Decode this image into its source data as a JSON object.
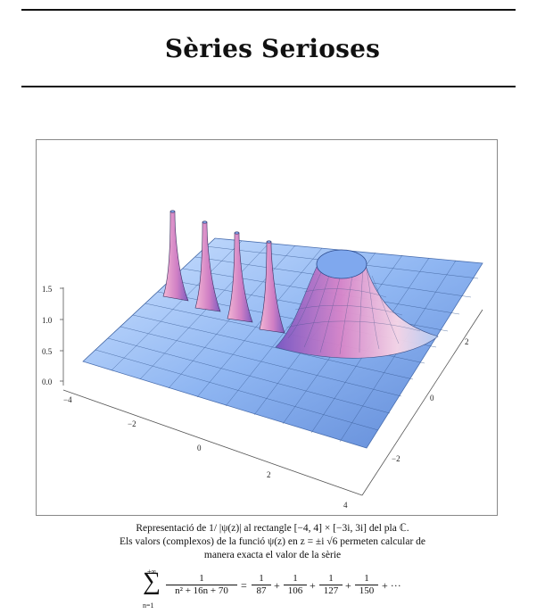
{
  "header": {
    "title": "Sèries Serioses"
  },
  "figure": {
    "axis_left_ticks": [
      "1.5",
      "1.0",
      "0.5",
      "0.0"
    ],
    "axis_front_ticks": [
      "−4",
      "−2",
      "0",
      "2",
      "4"
    ],
    "axis_right_ticks": [
      "2",
      "0",
      "−2"
    ],
    "surface_colors": {
      "light": "#cfe3ff",
      "mid": "#8fb6f2",
      "dark": "#5e88d6",
      "peak_pink": "#f3b6d4",
      "peak_purple": "#a35fb8",
      "cap_blue": "#7fa8ee"
    }
  },
  "caption": {
    "line1": "Representació de 1/ |ψ(z)| al rectangle [−4, 4] × [−3i, 3i] del pla ℂ.",
    "line2": "Els valors (complexos) de la funció ψ(z) en z = ±i √6 permeten calcular de",
    "line3": "manera exacta el valor de la sèrie"
  },
  "formula": {
    "sum_upper": "+∞",
    "sum_symbol": "∑",
    "sum_lower": "n=1",
    "general_num": "1",
    "general_den": "n² + 16n + 70",
    "eq": "=",
    "terms": [
      {
        "num": "1",
        "den": "87"
      },
      {
        "num": "1",
        "den": "106"
      },
      {
        "num": "1",
        "den": "127"
      },
      {
        "num": "1",
        "den": "150"
      }
    ],
    "plus": "+",
    "tail": "+ ···"
  }
}
